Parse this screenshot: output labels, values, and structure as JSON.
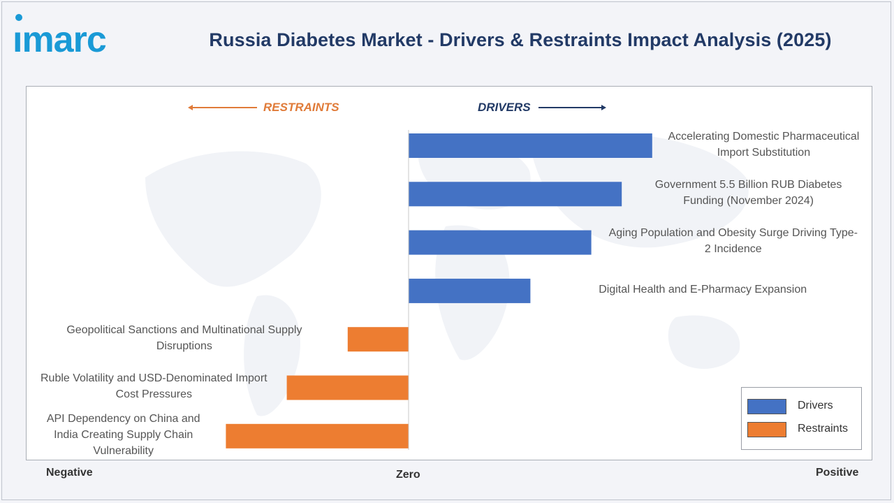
{
  "brand": {
    "logo_text": "imarc"
  },
  "title": "Russia Diabetes Market - Drivers & Restraints Impact Analysis (2025)",
  "colors": {
    "drivers": "#4472c4",
    "restraints": "#ed7d31",
    "title": "#223a66",
    "logo": "#1a9ad6"
  },
  "headers": {
    "restraints": "RESTRAINTS",
    "drivers": "DRIVERS"
  },
  "axis": {
    "negative": "Negative",
    "zero": "Zero",
    "positive": "Positive"
  },
  "legend": {
    "drivers": "Drivers",
    "restraints": "Restraints"
  },
  "chart_data": {
    "type": "bar",
    "orientation": "horizontal",
    "title": "Russia Diabetes Market - Drivers & Restraints Impact Analysis (2025)",
    "xlim": [
      -100,
      100
    ],
    "categories": [
      "Accelerating Domestic Pharmaceutical Import Substitution",
      "Government 5.5 Billion RUB Diabetes Funding (November 2024)",
      "Aging Population and Obesity Surge Driving Type-2 Incidence",
      "Digital Health and E-Pharmacy Expansion",
      "Geopolitical Sanctions and Multinational Supply Disruptions",
      "Ruble Volatility and USD-Denominated Import Cost Pressures",
      "API Dependency on China and India Creating Supply Chain Vulnerability"
    ],
    "series": [
      {
        "name": "Drivers",
        "values": [
          64,
          56,
          48,
          32,
          null,
          null,
          null
        ]
      },
      {
        "name": "Restraints",
        "values": [
          null,
          null,
          null,
          null,
          -16,
          -32,
          -48
        ]
      }
    ],
    "labels": [
      [
        "Accelerating Domestic Pharmaceutical",
        "Import Substitution"
      ],
      [
        "Government 5.5 Billion RUB Diabetes",
        "Funding (November 2024)"
      ],
      [
        "Aging Population and Obesity Surge Driving Type-",
        "2 Incidence"
      ],
      [
        "Digital Health and E-Pharmacy Expansion"
      ],
      [
        "Geopolitical Sanctions and Multinational Supply",
        "Disruptions"
      ],
      [
        "Ruble Volatility and USD-Denominated Import",
        "Cost Pressures"
      ],
      [
        "API Dependency on China and",
        "India Creating Supply Chain",
        "Vulnerability"
      ]
    ],
    "legend_position": "bottom-right",
    "grid": false
  }
}
